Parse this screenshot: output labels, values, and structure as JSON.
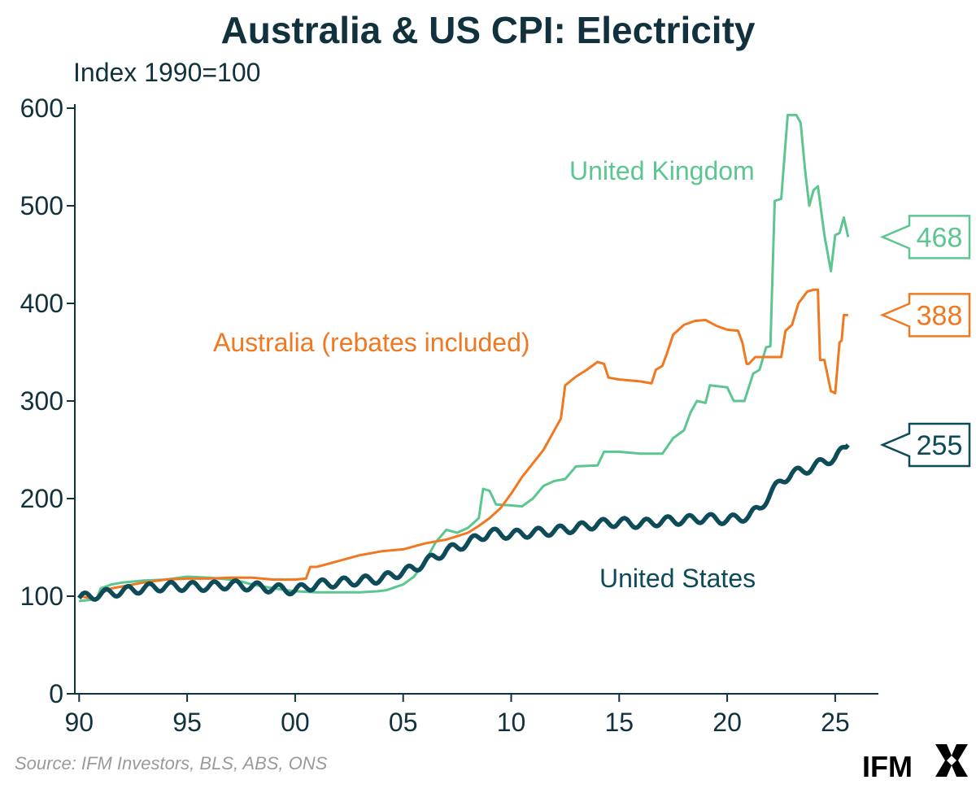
{
  "chart_data": {
    "type": "line",
    "title": "Australia & US CPI: Electricity",
    "ylabel": "Index 1990=100",
    "xlabel": "",
    "ylim": [
      0,
      600
    ],
    "xlim": [
      1989.8,
      2027.0
    ],
    "yticks": [
      0,
      100,
      200,
      300,
      400,
      500,
      600
    ],
    "ytick_labels": [
      "0",
      "100",
      "200",
      "300",
      "400",
      "500",
      "600"
    ],
    "xticks": [
      1990,
      1995,
      2000,
      2005,
      2010,
      2015,
      2020,
      2025
    ],
    "xtick_labels": [
      "90",
      "95",
      "00",
      "05",
      "10",
      "15",
      "20",
      "25"
    ],
    "series": [
      {
        "name": "United Kingdom",
        "color": "#5cc690",
        "end_value": "468",
        "points": [
          [
            1990.0,
            95
          ],
          [
            1990.8,
            97
          ],
          [
            1991.0,
            108
          ],
          [
            1991.5,
            112
          ],
          [
            1992.0,
            114
          ],
          [
            1993.0,
            116
          ],
          [
            1994.0,
            117
          ],
          [
            1995.0,
            120
          ],
          [
            1996.0,
            119
          ],
          [
            1996.5,
            118
          ],
          [
            1997.0,
            117
          ],
          [
            1997.5,
            115
          ],
          [
            1998.0,
            112
          ],
          [
            1999.0,
            108
          ],
          [
            2000.0,
            105
          ],
          [
            2001.0,
            104
          ],
          [
            2002.0,
            104
          ],
          [
            2003.0,
            104
          ],
          [
            2003.8,
            105
          ],
          [
            2004.2,
            106
          ],
          [
            2005.0,
            112
          ],
          [
            2005.5,
            120
          ],
          [
            2006.0,
            135
          ],
          [
            2006.5,
            155
          ],
          [
            2007.0,
            168
          ],
          [
            2007.5,
            165
          ],
          [
            2008.0,
            170
          ],
          [
            2008.5,
            180
          ],
          [
            2008.7,
            210
          ],
          [
            2009.0,
            208
          ],
          [
            2009.3,
            194
          ],
          [
            2010.0,
            193
          ],
          [
            2010.5,
            192
          ],
          [
            2011.0,
            200
          ],
          [
            2011.5,
            213
          ],
          [
            2012.0,
            218
          ],
          [
            2012.5,
            220
          ],
          [
            2013.0,
            233
          ],
          [
            2014.0,
            234
          ],
          [
            2014.3,
            248
          ],
          [
            2015.0,
            248
          ],
          [
            2016.0,
            246
          ],
          [
            2017.0,
            246
          ],
          [
            2017.5,
            262
          ],
          [
            2018.0,
            270
          ],
          [
            2018.3,
            288
          ],
          [
            2018.6,
            300
          ],
          [
            2019.0,
            298
          ],
          [
            2019.2,
            316
          ],
          [
            2020.0,
            314
          ],
          [
            2020.3,
            300
          ],
          [
            2020.8,
            300
          ],
          [
            2021.2,
            328
          ],
          [
            2021.5,
            332
          ],
          [
            2021.8,
            355
          ],
          [
            2022.0,
            356
          ],
          [
            2022.2,
            505
          ],
          [
            2022.5,
            507
          ],
          [
            2022.8,
            593
          ],
          [
            2023.0,
            593
          ],
          [
            2023.2,
            593
          ],
          [
            2023.4,
            585
          ],
          [
            2023.6,
            538
          ],
          [
            2023.8,
            500
          ],
          [
            2024.0,
            516
          ],
          [
            2024.2,
            520
          ],
          [
            2024.5,
            470
          ],
          [
            2024.8,
            433
          ],
          [
            2025.0,
            470
          ],
          [
            2025.2,
            472
          ],
          [
            2025.4,
            488
          ],
          [
            2025.6,
            468
          ]
        ]
      },
      {
        "name": "Australia (rebates included)",
        "color": "#f07820",
        "end_value": "388",
        "points": [
          [
            1990.0,
            100
          ],
          [
            1990.8,
            97
          ],
          [
            1991.0,
            103
          ],
          [
            1991.5,
            108
          ],
          [
            1992.0,
            110
          ],
          [
            1993.0,
            114
          ],
          [
            1994.0,
            117
          ],
          [
            1995.0,
            118
          ],
          [
            1996.0,
            118
          ],
          [
            1997.0,
            119
          ],
          [
            1998.0,
            119
          ],
          [
            1999.0,
            117
          ],
          [
            2000.0,
            117
          ],
          [
            2000.5,
            118
          ],
          [
            2000.7,
            130
          ],
          [
            2001.0,
            130
          ],
          [
            2002.0,
            136
          ],
          [
            2003.0,
            142
          ],
          [
            2004.0,
            146
          ],
          [
            2005.0,
            148
          ],
          [
            2006.0,
            154
          ],
          [
            2007.0,
            158
          ],
          [
            2008.0,
            165
          ],
          [
            2008.5,
            172
          ],
          [
            2009.0,
            180
          ],
          [
            2009.5,
            190
          ],
          [
            2010.0,
            205
          ],
          [
            2010.5,
            222
          ],
          [
            2011.0,
            236
          ],
          [
            2011.5,
            250
          ],
          [
            2012.0,
            270
          ],
          [
            2012.3,
            282
          ],
          [
            2012.5,
            316
          ],
          [
            2013.0,
            325
          ],
          [
            2013.5,
            332
          ],
          [
            2014.0,
            340
          ],
          [
            2014.3,
            338
          ],
          [
            2014.5,
            324
          ],
          [
            2015.0,
            322
          ],
          [
            2016.0,
            320
          ],
          [
            2016.5,
            318
          ],
          [
            2016.7,
            332
          ],
          [
            2017.0,
            336
          ],
          [
            2017.2,
            348
          ],
          [
            2017.5,
            368
          ],
          [
            2018.0,
            378
          ],
          [
            2018.5,
            382
          ],
          [
            2019.0,
            383
          ],
          [
            2019.5,
            377
          ],
          [
            2020.0,
            373
          ],
          [
            2020.5,
            372
          ],
          [
            2020.7,
            360
          ],
          [
            2020.9,
            338
          ],
          [
            2021.0,
            338
          ],
          [
            2021.3,
            345
          ],
          [
            2022.0,
            345
          ],
          [
            2022.5,
            345
          ],
          [
            2022.7,
            372
          ],
          [
            2023.0,
            378
          ],
          [
            2023.3,
            400
          ],
          [
            2023.7,
            412
          ],
          [
            2024.0,
            414
          ],
          [
            2024.2,
            414
          ],
          [
            2024.3,
            342
          ],
          [
            2024.5,
            342
          ],
          [
            2024.8,
            310
          ],
          [
            2025.0,
            308
          ],
          [
            2025.2,
            360
          ],
          [
            2025.3,
            362
          ],
          [
            2025.4,
            388
          ],
          [
            2025.6,
            388
          ]
        ]
      },
      {
        "name": "United States",
        "color": "#0d4b58",
        "end_value": "255",
        "points": [
          [
            1990.0,
            98
          ],
          [
            1991.0,
            102
          ],
          [
            1992.0,
            105
          ],
          [
            1993.0,
            108
          ],
          [
            1994.0,
            110
          ],
          [
            1995.0,
            110
          ],
          [
            1996.0,
            110
          ],
          [
            1997.0,
            112
          ],
          [
            1998.0,
            110
          ],
          [
            1999.0,
            108
          ],
          [
            2000.0,
            106
          ],
          [
            2001.0,
            112
          ],
          [
            2002.0,
            114
          ],
          [
            2003.0,
            116
          ],
          [
            2004.0,
            118
          ],
          [
            2005.0,
            125
          ],
          [
            2005.5,
            128
          ],
          [
            2006.0,
            135
          ],
          [
            2006.5,
            140
          ],
          [
            2007.0,
            147
          ],
          [
            2007.5,
            150
          ],
          [
            2008.0,
            155
          ],
          [
            2009.0,
            165
          ],
          [
            2010.0,
            163
          ],
          [
            2011.0,
            165
          ],
          [
            2012.0,
            167
          ],
          [
            2013.0,
            170
          ],
          [
            2014.0,
            174
          ],
          [
            2015.0,
            176
          ],
          [
            2016.0,
            174
          ],
          [
            2017.0,
            177
          ],
          [
            2018.0,
            178
          ],
          [
            2019.0,
            180
          ],
          [
            2020.0,
            178
          ],
          [
            2021.0,
            182
          ],
          [
            2021.5,
            190
          ],
          [
            2022.0,
            205
          ],
          [
            2022.5,
            218
          ],
          [
            2023.0,
            226
          ],
          [
            2023.5,
            228
          ],
          [
            2024.0,
            233
          ],
          [
            2024.5,
            238
          ],
          [
            2025.0,
            242
          ],
          [
            2025.4,
            250
          ],
          [
            2025.6,
            255
          ]
        ]
      }
    ]
  },
  "source_text": "Source: IFM Investors, BLS, ABS, ONS",
  "brand": {
    "name": "IFM"
  }
}
